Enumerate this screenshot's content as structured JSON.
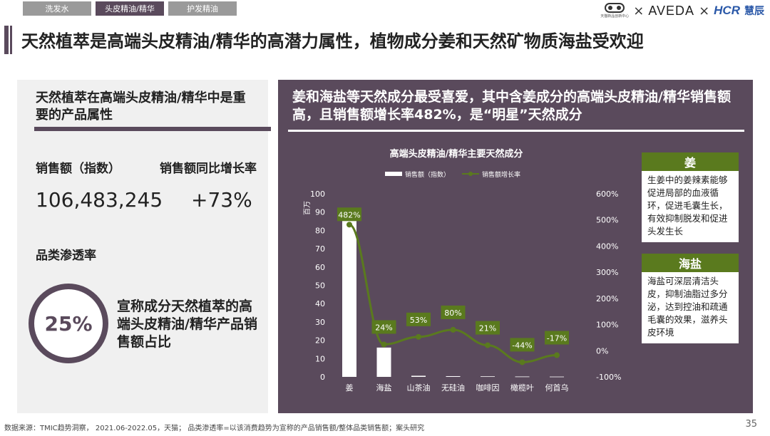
{
  "tabs": [
    "洗发水",
    "头皮精油/精华",
    "护发精油"
  ],
  "active_tab": 1,
  "logos": {
    "tmic_sub": "天猫新品创新中心",
    "aveda": "AVEDA",
    "hcr": "HCR",
    "hcr_cn": "慧辰",
    "times": "×"
  },
  "title": "天然植萃是高端头皮精油/精华的高潜力属性，植物成分姜和天然矿物质海盐受欢迎",
  "left": {
    "heading": "天然植萃在高端头皮精油/精华中是重要的产品属性",
    "sales_label": "销售额（指数）",
    "growth_label": "销售额同比增长率",
    "sales_value": "106,483,245",
    "growth_value": "+73%",
    "penetration_label": "品类渗透率",
    "penetration_value": "25%",
    "penetration_desc": "宣称成分天然植萃的高端头皮精油/精华产品销售额占比"
  },
  "right": {
    "heading": "姜和海盐等天然成分最受喜爱，其中含姜成分的高端头皮精油/精华销售额高，且销售额增长率482%，是“明星”天然成分"
  },
  "notes": [
    {
      "title": "姜",
      "body": "生姜中的姜辣素能够促进局部的血液循环，促进毛囊生长，有效抑制脱发和促进头发生长"
    },
    {
      "title": "海盐",
      "body": "海盐可深层清洁头皮，抑制油脂过多分泌，达到控油和疏通毛囊的效果，滋养头皮环境"
    }
  ],
  "chart_data": {
    "type": "bar",
    "title": "高端头皮精油/精华主要天然成分",
    "categories": [
      "姜",
      "海盐",
      "山茶油",
      "无硅油",
      "咖啡因",
      "橄榄叶",
      "何首乌"
    ],
    "series": [
      {
        "name": "销售额（指数）",
        "type": "bar",
        "axis": "left",
        "values": [
          88,
          16,
          0.6,
          0.4,
          0.3,
          0.2,
          0.15
        ]
      },
      {
        "name": "销售额增长率",
        "type": "line",
        "axis": "right",
        "values": [
          482,
          24,
          53,
          80,
          21,
          -44,
          -17
        ]
      }
    ],
    "point_labels": [
      "482%",
      "24%",
      "53%",
      "80%",
      "21%",
      "-44%",
      "-17%"
    ],
    "y_left": {
      "unit": "百万",
      "ticks": [
        "0",
        "10",
        "20",
        "30",
        "40",
        "50",
        "60",
        "70",
        "80",
        "90",
        "100"
      ],
      "ylim": [
        0,
        100
      ]
    },
    "y_right": {
      "ticks": [
        "-100%",
        "0%",
        "100%",
        "200%",
        "300%",
        "400%",
        "500%",
        "600%"
      ],
      "ylim": [
        -100,
        600
      ]
    },
    "legend_position": "top",
    "colors": {
      "bar": "#ffffff",
      "line": "#5a7a1e",
      "label_bg": "#5a7a1e",
      "text": "#ffffff"
    }
  },
  "footer": "数据来源：TMIC趋势洞察， 2021.06-2022.05，天猫； 品类渗透率=以该消费趋势为宣称的产品销售额/整体品类销售额；案头研究",
  "page_number": "35"
}
